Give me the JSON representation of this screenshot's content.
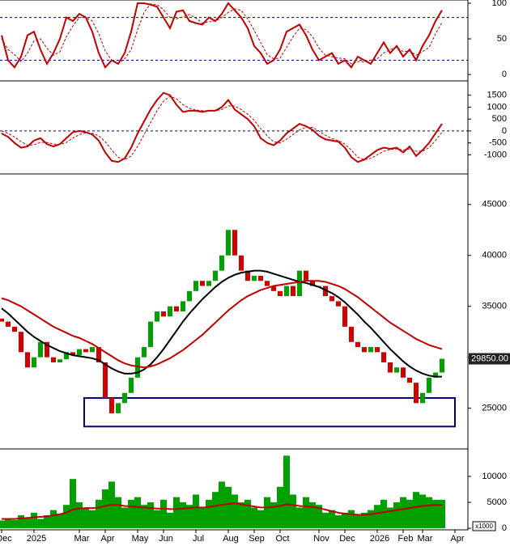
{
  "chart_data": [
    {
      "type": "line",
      "ylim": [
        -9,
        104.5
      ],
      "yticks": [
        0,
        50,
        100
      ],
      "reference_lines": [
        80,
        20
      ],
      "reference_color": "#000080",
      "series": [
        {
          "color": "#c00000",
          "values": [
            55,
            20,
            10,
            25,
            55,
            60,
            35,
            15,
            30,
            50,
            80,
            75,
            85,
            80,
            60,
            30,
            10,
            20,
            15,
            30,
            60,
            100,
            100,
            98,
            95,
            80,
            65,
            88,
            90,
            75,
            72,
            70,
            80,
            75,
            85,
            100,
            90,
            80,
            65,
            40,
            30,
            15,
            20,
            35,
            60,
            65,
            70,
            55,
            35,
            20,
            25,
            30,
            15,
            20,
            10,
            25,
            20,
            15,
            30,
            45,
            30,
            40,
            25,
            35,
            20,
            40,
            55,
            75,
            90,
            null,
            null
          ]
        },
        {
          "color": "#c00000",
          "dashed": true,
          "values": [
            50,
            35,
            28,
            18,
            30,
            47,
            50,
            37,
            27,
            32,
            53,
            68,
            80,
            80,
            75,
            57,
            33,
            20,
            15,
            22,
            35,
            63,
            87,
            99,
            98,
            91,
            80,
            78,
            81,
            84,
            79,
            72,
            74,
            75,
            80,
            87,
            92,
            90,
            78,
            62,
            45,
            28,
            22,
            23,
            38,
            53,
            65,
            63,
            53,
            37,
            27,
            25,
            23,
            22,
            15,
            18,
            18,
            20,
            22,
            30,
            35,
            38,
            32,
            33,
            27,
            32,
            38,
            57,
            73,
            null,
            null
          ]
        }
      ]
    },
    {
      "type": "line",
      "ylim": [
        -1800,
        2100
      ],
      "yticks": [
        -1000,
        -500,
        0,
        500,
        1000,
        1500
      ],
      "reference_lines": [
        0
      ],
      "reference_color": "#000080",
      "series": [
        {
          "color": "#c00000",
          "values": [
            -100,
            -250,
            -500,
            -700,
            -650,
            -400,
            -300,
            -550,
            -650,
            -550,
            -300,
            -50,
            0,
            -50,
            -150,
            -400,
            -900,
            -1250,
            -1300,
            -1150,
            -700,
            -100,
            400,
            900,
            1300,
            1600,
            1500,
            1100,
            800,
            850,
            850,
            800,
            850,
            850,
            1000,
            1300,
            900,
            700,
            500,
            200,
            -300,
            -500,
            -600,
            -400,
            -100,
            100,
            300,
            200,
            50,
            -200,
            -350,
            -400,
            -450,
            -700,
            -1100,
            -1300,
            -1200,
            -1000,
            -800,
            -700,
            -750,
            -700,
            -900,
            -650,
            -1050,
            -800,
            -500,
            -100,
            300,
            null,
            null
          ]
        },
        {
          "color": "#c00000",
          "dashed": true,
          "values": [
            0,
            -100,
            -250,
            -450,
            -600,
            -580,
            -480,
            -480,
            -550,
            -570,
            -480,
            -300,
            -150,
            -80,
            -100,
            -200,
            -450,
            -800,
            -1100,
            -1200,
            -1050,
            -650,
            -150,
            350,
            850,
            1250,
            1450,
            1350,
            1100,
            950,
            880,
            850,
            850,
            850,
            900,
            1050,
            1050,
            900,
            700,
            450,
            100,
            -200,
            -450,
            -500,
            -350,
            -150,
            50,
            150,
            150,
            0,
            -180,
            -320,
            -400,
            -550,
            -800,
            -1100,
            -1200,
            -1150,
            -1000,
            -850,
            -780,
            -750,
            -800,
            -750,
            -850,
            -850,
            -700,
            -400,
            -50,
            null,
            null
          ]
        }
      ]
    },
    {
      "type": "candlestick",
      "ylim": [
        21000,
        48000
      ],
      "yticks": [
        25000,
        30000,
        35000,
        40000,
        45000
      ],
      "up_color": "#00a000",
      "down_color": "#d00000",
      "open": [
        33800,
        33500,
        33000,
        32500,
        30500,
        29000,
        30000,
        31500,
        30000,
        29500,
        29800,
        30500,
        30200,
        30800,
        30500,
        31000,
        29500,
        26000,
        24500,
        25500,
        26500,
        28000,
        30000,
        31000,
        33500,
        34500,
        34000,
        35000,
        34500,
        35500,
        36500,
        37500,
        37000,
        37500,
        38500,
        40000,
        42500,
        40000,
        38500,
        37500,
        38000,
        37500,
        37000,
        36500,
        36000,
        37000,
        36000,
        38500,
        37500,
        37000,
        37000,
        36000,
        35500,
        35000,
        33000,
        31500,
        31000,
        30500,
        31000,
        30500,
        29500,
        28500,
        29000,
        28000,
        27500,
        25500,
        26500,
        28000,
        28500,
        null,
        null
      ],
      "close": [
        33500,
        33000,
        32500,
        30500,
        29000,
        30000,
        31500,
        30000,
        29500,
        29800,
        30500,
        30200,
        30800,
        30500,
        31000,
        29500,
        26000,
        24500,
        25500,
        26500,
        28000,
        30000,
        31000,
        33500,
        34500,
        34000,
        35000,
        34500,
        35500,
        36500,
        37500,
        37000,
        37500,
        38500,
        40000,
        42500,
        40000,
        38500,
        37500,
        38000,
        37500,
        37000,
        36500,
        36000,
        37000,
        36000,
        38500,
        37500,
        37000,
        37000,
        36000,
        35500,
        35000,
        33000,
        31500,
        31000,
        30500,
        31000,
        30500,
        29500,
        28500,
        29000,
        28000,
        27500,
        25500,
        26500,
        28000,
        28500,
        29850,
        null,
        null
      ],
      "series": [
        {
          "color": "#000000",
          "values": [
            34800,
            34300,
            33700,
            33100,
            32500,
            32000,
            31600,
            31200,
            30900,
            30600,
            30400,
            30200,
            30100,
            30000,
            29900,
            29700,
            29300,
            28900,
            28600,
            28400,
            28400,
            28500,
            28800,
            29300,
            30000,
            30800,
            31700,
            32600,
            33500,
            34300,
            35000,
            35700,
            36300,
            36900,
            37400,
            37800,
            38100,
            38300,
            38400,
            38500,
            38500,
            38400,
            38200,
            38000,
            37800,
            37600,
            37400,
            37300,
            37100,
            36900,
            36600,
            36300,
            35900,
            35400,
            34800,
            34200,
            33500,
            32900,
            32200,
            31500,
            30800,
            30200,
            29600,
            29100,
            28700,
            28400,
            28200,
            28100,
            28100,
            null,
            null
          ]
        },
        {
          "color": "#c00000",
          "values": [
            35800,
            35600,
            35300,
            35000,
            34600,
            34200,
            33800,
            33400,
            33000,
            32700,
            32400,
            32100,
            31900,
            31600,
            31300,
            30900,
            30500,
            30100,
            29700,
            29400,
            29200,
            29100,
            29000,
            29100,
            29300,
            29600,
            29900,
            30300,
            30700,
            31200,
            31700,
            32200,
            32800,
            33400,
            34000,
            34600,
            35100,
            35600,
            36000,
            36300,
            36600,
            36800,
            37000,
            37100,
            37200,
            37300,
            37400,
            37500,
            37500,
            37500,
            37400,
            37200,
            37000,
            36700,
            36300,
            35900,
            35400,
            34900,
            34400,
            33900,
            33400,
            33000,
            32600,
            32200,
            31800,
            31500,
            31200,
            31000,
            30800,
            null,
            null
          ]
        }
      ],
      "last_price": {
        "value": 29850,
        "label": "29850.00"
      },
      "support_zone": {
        "low": 23200,
        "high": 26000,
        "color": "#000080"
      }
    },
    {
      "type": "bar",
      "ylim": [
        -300,
        15300
      ],
      "yticks": [
        0,
        5000,
        10000
      ],
      "color": "#00a000",
      "unit_label": "x1000",
      "values": [
        1500,
        1800,
        1600,
        2500,
        2000,
        3000,
        1800,
        2500,
        3500,
        2800,
        4500,
        9500,
        5000,
        4000,
        3500,
        5500,
        7500,
        9000,
        6000,
        4000,
        5500,
        6000,
        4500,
        5000,
        3500,
        5500,
        3000,
        6000,
        5000,
        4500,
        6500,
        4000,
        5500,
        7000,
        9000,
        8000,
        6500,
        5000,
        5500,
        4000,
        3500,
        6000,
        5000,
        8000,
        14000,
        6500,
        4000,
        6000,
        5000,
        4500,
        3000,
        3500,
        2500,
        3000,
        3500,
        2500,
        3000,
        3500,
        4500,
        5500,
        4000,
        5000,
        6000,
        5500,
        7000,
        6500,
        6000,
        5500,
        5500,
        null,
        null
      ],
      "series": [
        {
          "color": "#c00000",
          "values": [
            1800,
            1800,
            1800,
            1900,
            2000,
            2100,
            2200,
            2300,
            2500,
            2700,
            3000,
            3600,
            3800,
            3900,
            3900,
            4000,
            4300,
            4500,
            4500,
            4300,
            4200,
            4100,
            4000,
            3900,
            3800,
            3800,
            3700,
            3700,
            3800,
            3900,
            4000,
            4000,
            4100,
            4300,
            4500,
            4700,
            4800,
            4600,
            4400,
            4200,
            4000,
            4000,
            4100,
            4300,
            4600,
            4500,
            4300,
            4200,
            4100,
            3900,
            3600,
            3300,
            3000,
            2800,
            2700,
            2600,
            2600,
            2700,
            2900,
            3100,
            3300,
            3500,
            3700,
            3900,
            4100,
            4300,
            4400,
            4500,
            4500,
            null,
            null
          ]
        }
      ],
      "categories": [
        "Dec",
        null,
        null,
        null,
        null,
        "2025",
        null,
        null,
        null,
        null,
        null,
        null,
        "Mar",
        null,
        null,
        null,
        "Apr",
        null,
        null,
        null,
        null,
        "May",
        null,
        null,
        null,
        "Jun",
        null,
        null,
        null,
        null,
        "Jul",
        null,
        null,
        null,
        null,
        "Aug",
        null,
        null,
        null,
        "Sep",
        null,
        null,
        null,
        "Oct",
        null,
        null,
        null,
        null,
        null,
        "Nov",
        null,
        null,
        null,
        "Dec",
        null,
        null,
        null,
        null,
        "2026",
        null,
        null,
        null,
        "Feb",
        null,
        null,
        "Mar",
        null,
        null,
        null,
        null,
        "Apr"
      ]
    }
  ]
}
